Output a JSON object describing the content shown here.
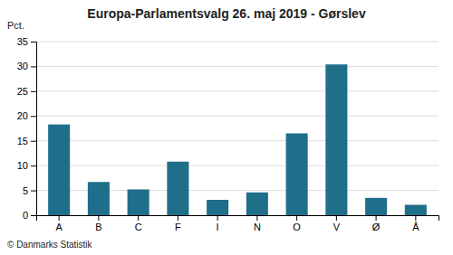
{
  "chart_data": {
    "type": "bar",
    "title": "Europa-Parlamentsvalg 26. maj 2019 - Gørslev",
    "ylabel": "Pct.",
    "footer": "© Danmarks Statistik",
    "categories": [
      "A",
      "B",
      "C",
      "F",
      "I",
      "N",
      "O",
      "V",
      "Ø",
      "Å"
    ],
    "values": [
      18.3,
      6.7,
      5.2,
      10.8,
      3.1,
      4.6,
      16.5,
      30.4,
      3.5,
      2.1
    ],
    "color": "#1f6f8b",
    "ylim": [
      0,
      35
    ],
    "yticks": [
      0,
      5,
      10,
      15,
      20,
      25,
      30,
      35
    ],
    "grid": true
  }
}
